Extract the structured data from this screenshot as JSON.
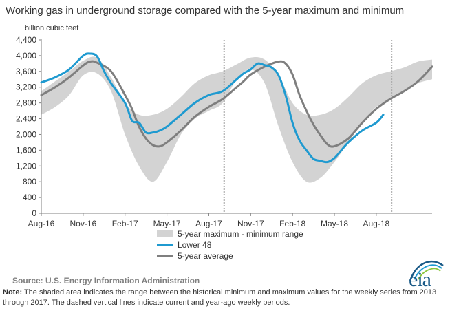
{
  "title": "Working gas in underground  storage compared with the 5-year maximum  and minimum",
  "unit_label": "billion cubic feet",
  "source": "Source:  U.S. Energy Information Administration",
  "note": {
    "label": "Note:",
    "text": " The shaded area indicates the range between the historical minimum and maximum values for the weekly series from 2013 through 2017. The dashed vertical lines indicate current and year-ago weekly periods."
  },
  "logo_text": "eia",
  "colors": {
    "band": "#d3d3d3",
    "lower48": "#1f9ad0",
    "avg": "#7f7f7f",
    "axis": "#808080",
    "dashed": "#a6a6a6",
    "logo": "#1a5a87"
  },
  "chart_data": {
    "type": "area",
    "title": "Working gas in underground  storage compared with the 5-year maximum  and minimum",
    "ylabel": "billion cubic feet",
    "ylim": [
      0,
      4400
    ],
    "yticks": [
      0,
      400,
      800,
      1200,
      1600,
      2000,
      2400,
      2800,
      3200,
      3600,
      4000,
      4400
    ],
    "ytick_labels": [
      "0",
      "400",
      "800",
      "1,200",
      "1,600",
      "2,000",
      "2,400",
      "2,800",
      "3,200",
      "3,600",
      "4,000",
      "4,400"
    ],
    "x_unit": "month index (0 = Aug-16)",
    "xlim": [
      0,
      28
    ],
    "xticks": [
      0,
      3,
      6,
      9,
      12,
      15,
      18,
      21,
      24
    ],
    "xtick_labels": [
      "Aug-16",
      "Nov-16",
      "Feb-17",
      "May-17",
      "Aug-17",
      "Nov-17",
      "Feb-18",
      "May-18",
      "Aug-18"
    ],
    "grid": false,
    "legend_placement": "bottom-center",
    "dashed_lines_x": [
      13.1,
      25.1
    ],
    "legend": [
      {
        "label": "5-year maximum - minimum range",
        "kind": "band"
      },
      {
        "label": "Lower 48",
        "kind": "line",
        "series": "Lower 48"
      },
      {
        "label": "5-year average",
        "kind": "line",
        "series": "5-year average"
      }
    ],
    "band": {
      "x": [
        0,
        1,
        2,
        3,
        4,
        5,
        6,
        7,
        8,
        9,
        10,
        11,
        12,
        13,
        14,
        15,
        16,
        17,
        18,
        19,
        20,
        21,
        22,
        23,
        24,
        25,
        26,
        27,
        28
      ],
      "max": [
        3100,
        3350,
        3600,
        3870,
        3950,
        3450,
        2800,
        2500,
        2500,
        2650,
        2950,
        3300,
        3500,
        3600,
        3780,
        3950,
        3900,
        3500,
        2800,
        2500,
        2500,
        2650,
        2950,
        3300,
        3500,
        3600,
        3700,
        3850,
        3900
      ],
      "min": [
        2500,
        2700,
        3000,
        3500,
        3550,
        3100,
        2000,
        1200,
        800,
        1300,
        2000,
        2400,
        2600,
        2800,
        3400,
        3650,
        3300,
        2200,
        1300,
        800,
        900,
        1300,
        1800,
        2300,
        2700,
        2900,
        3100,
        3300,
        3400
      ]
    },
    "series": [
      {
        "name": "5-year average",
        "x": [
          0,
          1,
          2,
          3,
          3.5,
          4,
          5,
          6,
          6.5,
          7,
          7.5,
          8,
          8.5,
          9,
          10,
          11,
          12,
          13,
          14,
          14.5,
          15,
          16,
          17,
          17.5,
          18,
          18.5,
          19,
          19.5,
          20,
          20.5,
          21,
          22,
          23,
          24,
          25,
          26,
          27,
          28
        ],
        "values": [
          3000,
          3200,
          3450,
          3750,
          3850,
          3820,
          3600,
          3000,
          2650,
          2200,
          1900,
          1730,
          1700,
          1800,
          2100,
          2450,
          2700,
          2900,
          3200,
          3350,
          3520,
          3720,
          3850,
          3800,
          3520,
          3000,
          2600,
          2250,
          1980,
          1750,
          1700,
          1900,
          2300,
          2650,
          2900,
          3100,
          3350,
          3720
        ]
      },
      {
        "name": "Lower 48",
        "x": [
          0,
          1,
          2,
          3,
          3.5,
          4,
          4.5,
          5,
          6,
          6.5,
          7,
          7.5,
          8,
          8.5,
          9,
          10,
          11,
          12,
          13,
          14,
          14.5,
          15,
          15.5,
          16,
          16.5,
          17,
          17.5,
          18,
          18.5,
          19,
          19.5,
          20,
          20.5,
          21,
          21.5,
          22,
          23,
          24,
          24.5
        ],
        "values": [
          3320,
          3450,
          3650,
          4000,
          4050,
          3980,
          3600,
          3300,
          2800,
          2350,
          2300,
          2050,
          2050,
          2100,
          2200,
          2500,
          2800,
          3000,
          3100,
          3400,
          3550,
          3650,
          3800,
          3760,
          3700,
          3500,
          3000,
          2300,
          1850,
          1600,
          1380,
          1330,
          1300,
          1400,
          1600,
          1800,
          2100,
          2300,
          2500
        ]
      }
    ]
  }
}
